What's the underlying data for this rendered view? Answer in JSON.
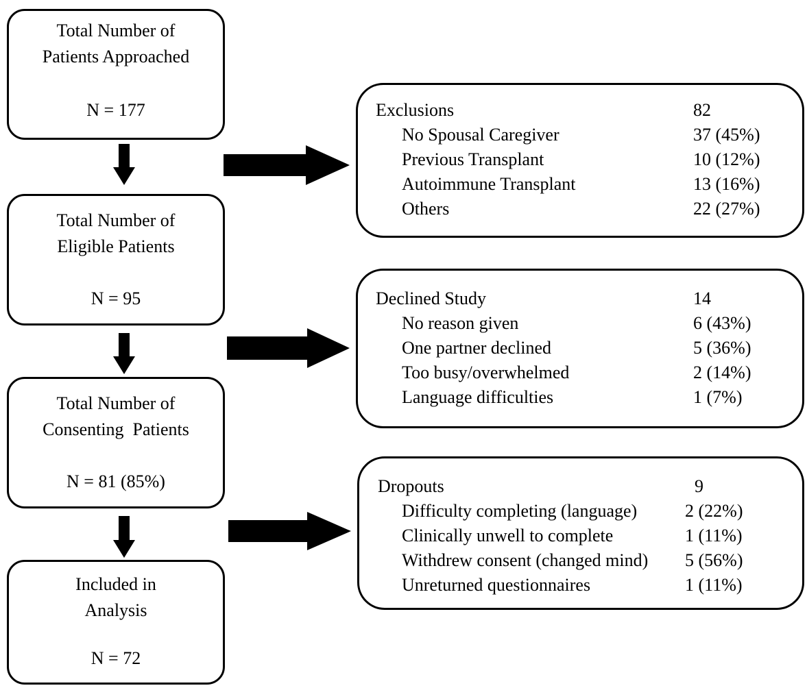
{
  "stages": [
    {
      "id": "approached",
      "title_lines": [
        "Total Number of",
        "Patients Approached"
      ],
      "count": "N = 177"
    },
    {
      "id": "eligible",
      "title_lines": [
        "Total Number of",
        "Eligible Patients"
      ],
      "count": "N = 95"
    },
    {
      "id": "consenting",
      "title_lines": [
        "Total Number of",
        "Consenting  Patients"
      ],
      "count": "N = 81 (85%)"
    },
    {
      "id": "analysis",
      "title_lines": [
        "Included in",
        "Analysis"
      ],
      "count": "N = 72"
    }
  ],
  "side_boxes": [
    {
      "id": "exclusions",
      "header": {
        "label": "Exclusions",
        "value": "82"
      },
      "items": [
        {
          "label": "No Spousal Caregiver",
          "value": "37 (45%)"
        },
        {
          "label": "Previous Transplant",
          "value": "10 (12%)"
        },
        {
          "label": "Autoimmune Transplant",
          "value": "13 (16%)"
        },
        {
          "label": "Others",
          "value": "22 (27%)"
        }
      ]
    },
    {
      "id": "declined",
      "header": {
        "label": "Declined Study",
        "value": "14"
      },
      "items": [
        {
          "label": "No reason given",
          "value": "6 (43%)"
        },
        {
          "label": "One partner declined",
          "value": "5 (36%)"
        },
        {
          "label": "Too busy/overwhelmed",
          "value": "2 (14%)"
        },
        {
          "label": "Language difficulties",
          "value": "1 (7%)"
        }
      ]
    },
    {
      "id": "dropouts",
      "header": {
        "label": "Dropouts",
        "value": "9"
      },
      "items": [
        {
          "label": "Difficulty completing (language)",
          "value": "2 (22%)"
        },
        {
          "label": "Clinically unwell to complete",
          "value": "1 (11%)"
        },
        {
          "label": "Withdrew consent (changed mind)",
          "value": "5 (56%)"
        },
        {
          "label": "Unreturned questionnaires",
          "value": "1 (11%)"
        }
      ]
    }
  ]
}
